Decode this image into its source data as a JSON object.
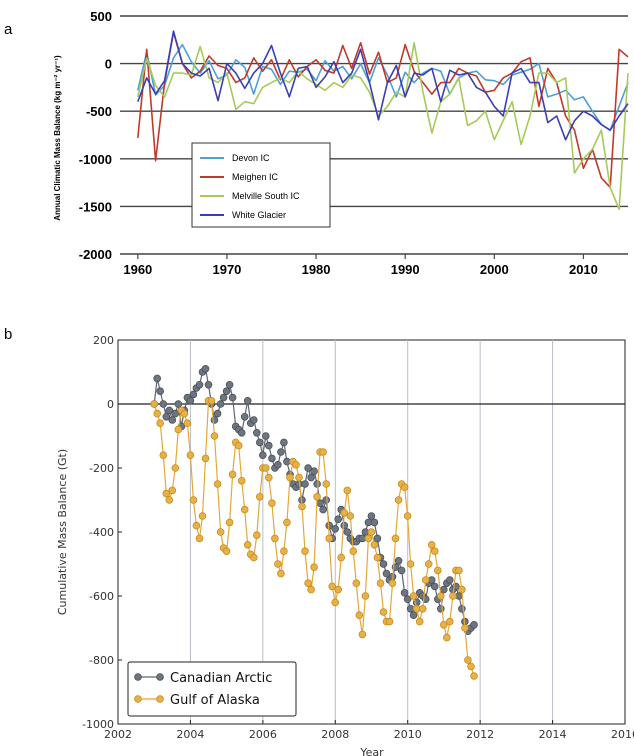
{
  "panels": {
    "a": "a",
    "b": "b"
  },
  "chart_data": [
    {
      "type": "line",
      "ylabel": "Annual Climatic Mass Balance (kg m⁻² yr⁻¹)",
      "xlabel": "",
      "xlim": [
        1958,
        2015
      ],
      "ylim": [
        -2000,
        500
      ],
      "xticks": [
        1960,
        1970,
        1980,
        1990,
        2000,
        2010
      ],
      "yticks": [
        500,
        0,
        -500,
        -1000,
        -1500,
        -2000
      ],
      "grid": "horizontal",
      "legend_position": "lower-left",
      "series": [
        {
          "name": "Devon IC",
          "color": "#4f9fd6",
          "x_start": 1960,
          "values": [
            -280,
            120,
            -330,
            -230,
            60,
            200,
            20,
            -100,
            30,
            -160,
            -120,
            40,
            -40,
            -320,
            -30,
            -60,
            -220,
            -80,
            -90,
            -60,
            -180,
            30,
            -80,
            -30,
            -160,
            0,
            -200,
            60,
            -120,
            -350,
            -90,
            -200,
            -100,
            -50,
            -80,
            -320,
            -150,
            -100,
            -80,
            -170,
            -180,
            -220,
            -120,
            -90,
            -60,
            0,
            -350,
            -320,
            -280,
            -380,
            -350,
            -500,
            -640,
            -700,
            -450,
            -200
          ]
        },
        {
          "name": "Meighen IC",
          "color": "#c0392b",
          "x_start": 1960,
          "values": [
            -780,
            150,
            -1020,
            -200,
            330,
            0,
            -150,
            -80,
            80,
            -20,
            -50,
            -200,
            -150,
            60,
            -80,
            40,
            -170,
            40,
            -140,
            -30,
            40,
            -70,
            -100,
            190,
            -50,
            220,
            -110,
            120,
            -200,
            -150,
            200,
            -80,
            -200,
            -320,
            -200,
            -200,
            -50,
            -100,
            -130,
            -300,
            -280,
            -150,
            -100,
            20,
            60,
            -450,
            -50,
            -200,
            -550,
            -700,
            -1100,
            -900,
            -1200,
            -1300,
            150,
            70
          ]
        },
        {
          "name": "Melville South IC",
          "color": "#a6c95a",
          "x_start": 1960,
          "values": [
            -350,
            60,
            -230,
            -350,
            -100,
            -100,
            -120,
            180,
            -150,
            -200,
            -100,
            -480,
            -400,
            -420,
            -250,
            -200,
            -150,
            -200,
            -80,
            -160,
            -220,
            -280,
            -200,
            -250,
            -120,
            -150,
            -300,
            -550,
            -450,
            -300,
            -350,
            220,
            -300,
            -730,
            -400,
            -320,
            -150,
            -650,
            -600,
            -500,
            -800,
            -600,
            -400,
            -850,
            -550,
            -100,
            -100,
            -200,
            -150,
            -1150,
            -1000,
            -900,
            -700,
            -1300,
            -1530,
            -100
          ]
        },
        {
          "name": "White Glacier",
          "color": "#3a3fb3",
          "x_start": 1960,
          "values": [
            -400,
            -150,
            -320,
            -180,
            340,
            0,
            -100,
            -130,
            -50,
            -390,
            0,
            -100,
            -260,
            -100,
            0,
            190,
            -100,
            -350,
            -50,
            -30,
            -250,
            -140,
            20,
            -200,
            -100,
            150,
            -200,
            -590,
            -200,
            -20,
            -350,
            -100,
            -120,
            -50,
            -400,
            -70,
            -120,
            -100,
            -250,
            -300,
            -450,
            -550,
            -100,
            -50,
            -200,
            -200,
            -620,
            -550,
            -800,
            -600,
            -500,
            -550,
            -640,
            -700,
            -550,
            -420
          ]
        }
      ]
    },
    {
      "type": "line",
      "xlabel": "Year",
      "ylabel": "Cumulative Mass Balance (Gt)",
      "xlim": [
        2002,
        2016
      ],
      "ylim": [
        -1000,
        200
      ],
      "xticks": [
        2002,
        2004,
        2006,
        2008,
        2010,
        2012,
        2014,
        2016
      ],
      "yticks": [
        200,
        0,
        -200,
        -400,
        -600,
        -800,
        -1000
      ],
      "grid": "vertical",
      "legend_position": "lower-left",
      "series": [
        {
          "name": "Canadian Arctic",
          "color": "#5d6570",
          "x_start": 2003.0,
          "x_step": 0.0833,
          "values": [
            0,
            80,
            40,
            0,
            -40,
            -20,
            -50,
            -30,
            0,
            -70,
            -20,
            20,
            10,
            30,
            50,
            60,
            100,
            110,
            60,
            0,
            -50,
            -30,
            0,
            20,
            40,
            60,
            20,
            -70,
            -80,
            -90,
            -40,
            10,
            -60,
            -50,
            -90,
            -120,
            -160,
            -100,
            -130,
            -170,
            -200,
            -190,
            -150,
            -120,
            -180,
            -220,
            -250,
            -260,
            -250,
            -300,
            -250,
            -200,
            -230,
            -210,
            -250,
            -310,
            -330,
            -300,
            -380,
            -420,
            -390,
            -360,
            -330,
            -380,
            -400,
            -420,
            -430,
            -430,
            -420,
            -420,
            -400,
            -370,
            -350,
            -370,
            -420,
            -480,
            -500,
            -530,
            -550,
            -540,
            -510,
            -490,
            -520,
            -590,
            -610,
            -640,
            -660,
            -620,
            -590,
            -600,
            -610,
            -560,
            -550,
            -570,
            -610,
            -640,
            -580,
            -560,
            -550,
            -580,
            -570,
            -600,
            -640,
            -680,
            -710,
            -700,
            -690
          ]
        },
        {
          "name": "Gulf of Alaska",
          "color": "#e1a83a",
          "x_start": 2003.0,
          "x_step": 0.0833,
          "values": [
            0,
            -30,
            -60,
            -160,
            -280,
            -300,
            -270,
            -200,
            -80,
            -20,
            -30,
            -60,
            -160,
            -300,
            -380,
            -420,
            -350,
            -170,
            10,
            10,
            -100,
            -250,
            -400,
            -450,
            -460,
            -370,
            -220,
            -120,
            -130,
            -240,
            -330,
            -440,
            -470,
            -480,
            -410,
            -290,
            -200,
            -200,
            -230,
            -310,
            -420,
            -500,
            -530,
            -460,
            -370,
            -230,
            -180,
            -190,
            -230,
            -320,
            -460,
            -560,
            -580,
            -510,
            -290,
            -150,
            -150,
            -250,
            -420,
            -570,
            -620,
            -580,
            -480,
            -340,
            -270,
            -350,
            -460,
            -560,
            -660,
            -720,
            -600,
            -420,
            -400,
            -440,
            -480,
            -560,
            -650,
            -680,
            -680,
            -560,
            -420,
            -300,
            -250,
            -260,
            -350,
            -500,
            -600,
            -640,
            -680,
            -640,
            -550,
            -500,
            -440,
            -460,
            -520,
            -600,
            -690,
            -730,
            -680,
            -600,
            -520,
            -520,
            -580,
            -700,
            -800,
            -820,
            -850
          ]
        }
      ]
    }
  ]
}
